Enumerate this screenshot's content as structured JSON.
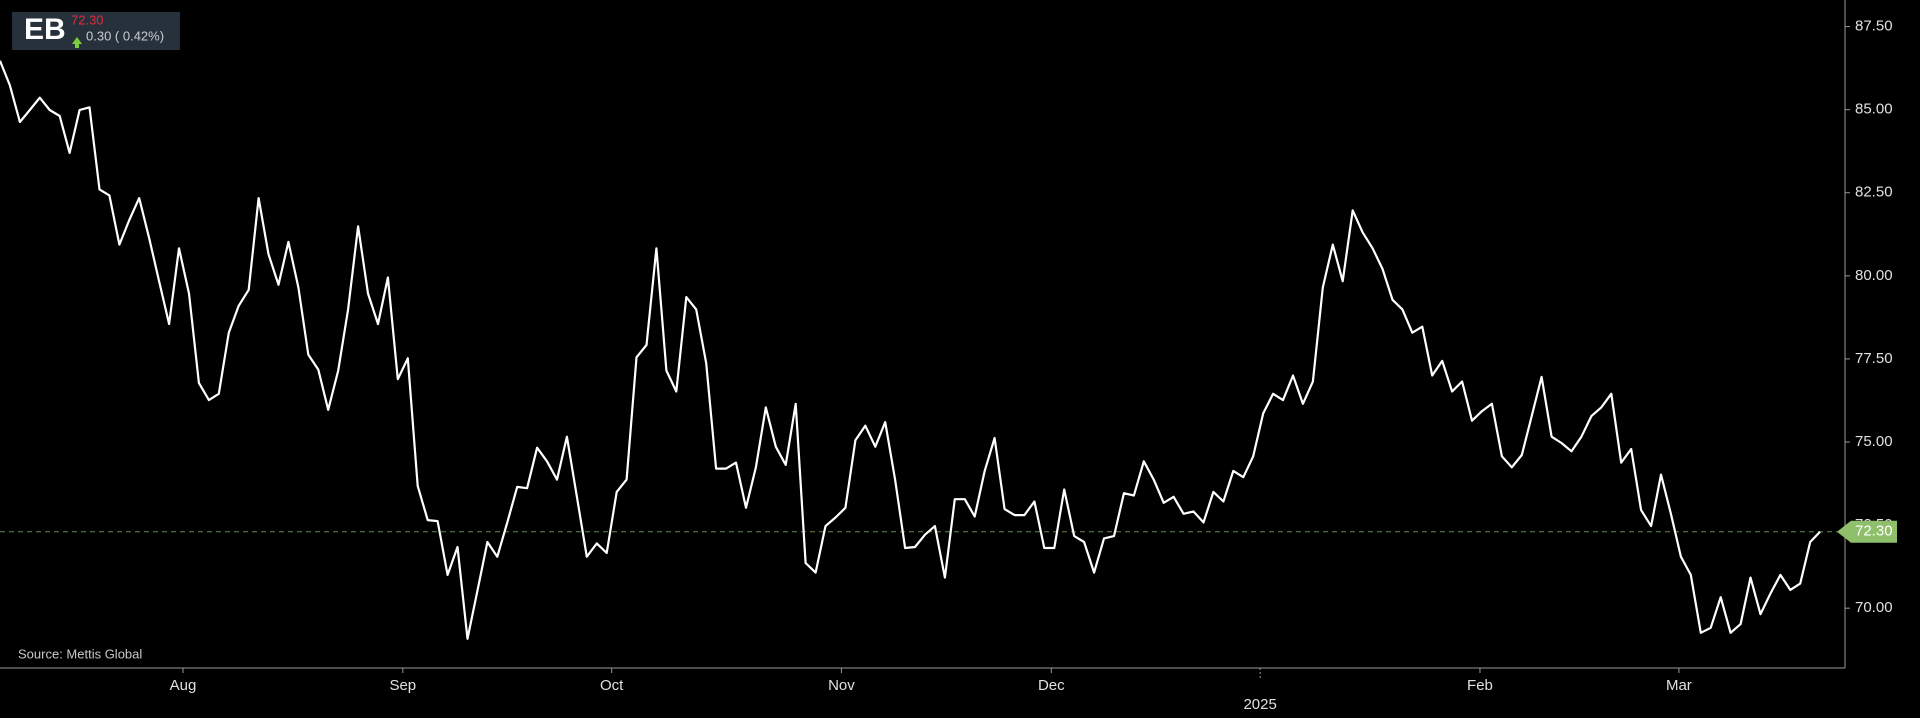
{
  "header": {
    "ticker": "EB",
    "price": "72.30",
    "change": "0.30 ( 0.42%)"
  },
  "chart_data": {
    "type": "line",
    "source": "Source: Mettis Global",
    "series": [
      {
        "color": "#ffffff",
        "values": [
          86.47,
          85.73,
          84.63,
          84.99,
          85.36,
          84.99,
          84.81,
          83.7,
          84.99,
          85.07,
          82.6,
          82.42,
          80.94,
          81.68,
          82.34,
          81.13,
          79.84,
          78.55,
          80.83,
          79.47,
          76.78,
          76.26,
          76.45,
          78.29,
          79.1,
          79.58,
          82.34,
          80.65,
          79.73,
          81.02,
          79.65,
          77.63,
          77.18,
          75.97,
          77.15,
          78.99,
          81.49,
          79.47,
          78.55,
          79.95,
          76.89,
          77.52,
          73.68,
          72.65,
          72.62,
          71.0,
          71.84,
          69.08,
          70.52,
          71.99,
          71.55,
          72.58,
          73.65,
          73.61,
          74.83,
          74.42,
          73.87,
          75.16,
          73.35,
          71.55,
          71.95,
          71.66,
          73.5,
          73.87,
          77.55,
          77.92,
          80.83,
          77.15,
          76.52,
          79.36,
          78.99,
          77.37,
          74.2,
          74.2,
          74.38,
          73.02,
          74.24,
          76.04,
          74.86,
          74.31,
          76.15,
          71.36,
          71.07,
          72.47,
          72.73,
          73.02,
          75.05,
          75.49,
          74.86,
          75.6,
          73.87,
          71.81,
          71.84,
          72.21,
          72.47,
          70.92,
          73.28,
          73.28,
          72.76,
          74.13,
          75.12,
          72.98,
          72.8,
          72.8,
          73.21,
          71.81,
          71.81,
          73.57,
          72.17,
          71.99,
          71.07,
          72.1,
          72.17,
          73.46,
          73.39,
          74.42,
          73.87,
          73.17,
          73.35,
          72.84,
          72.91,
          72.58,
          73.5,
          73.21,
          74.13,
          73.94,
          74.57,
          75.86,
          76.45,
          76.26,
          77.0,
          76.15,
          76.82,
          79.65,
          80.94,
          79.84,
          81.97,
          81.31,
          80.83,
          80.21,
          79.28,
          78.99,
          78.29,
          78.47,
          77.0,
          77.44,
          76.52,
          76.82,
          75.64,
          75.93,
          76.15,
          74.57,
          74.24,
          74.61,
          75.78,
          76.96,
          75.16,
          74.97,
          74.72,
          75.16,
          75.78,
          76.04,
          76.45,
          74.38,
          74.79,
          72.95,
          72.47,
          74.02,
          72.84,
          71.55,
          71.0,
          69.26,
          69.41,
          70.33,
          69.26,
          69.52,
          70.92,
          69.82,
          70.44,
          71.0,
          70.55,
          70.74,
          71.99,
          72.3
        ]
      }
    ],
    "xlim": [
      0,
      185.5
    ],
    "xticks": [
      {
        "value": 18.4,
        "label": "Aug"
      },
      {
        "value": 40.5,
        "label": "Sep"
      },
      {
        "value": 61.5,
        "label": "Oct"
      },
      {
        "value": 84.6,
        "label": "Nov"
      },
      {
        "value": 105.7,
        "label": "Dec"
      },
      {
        "value": 126.7,
        "label": "2025",
        "level": 2
      },
      {
        "value": 148.8,
        "label": "Feb"
      },
      {
        "value": 168.8,
        "label": "Mar"
      }
    ],
    "ylim": [
      68.2,
      88.3
    ],
    "yticks": [
      {
        "value": 70,
        "label": "70.00"
      },
      {
        "value": 72.5,
        "label": "72.50"
      },
      {
        "value": 75,
        "label": "75.00"
      },
      {
        "value": 77.5,
        "label": "77.50"
      },
      {
        "value": 80,
        "label": "80.00"
      },
      {
        "value": 82.5,
        "label": "82.50"
      },
      {
        "value": 85,
        "label": "85.00"
      },
      {
        "value": 87.5,
        "label": "87.50"
      }
    ],
    "price_line": {
      "value": 72.3,
      "label": "72.30",
      "color": "#8fbf6a"
    }
  }
}
